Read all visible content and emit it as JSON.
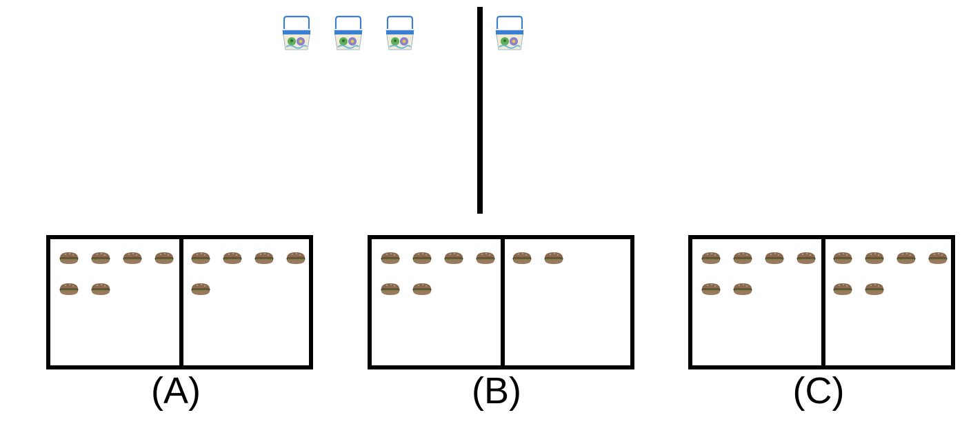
{
  "top": {
    "left_group": {
      "item": "basket",
      "count": 3
    },
    "right_group": {
      "item": "basket",
      "count": 1
    }
  },
  "options": [
    {
      "label": "(A)",
      "left_count": 6,
      "right_count": 5,
      "item": "hamburger"
    },
    {
      "label": "(B)",
      "left_count": 6,
      "right_count": 2,
      "item": "hamburger"
    },
    {
      "label": "(C)",
      "left_count": 6,
      "right_count": 6,
      "item": "hamburger"
    }
  ],
  "icons": {
    "basket": "basket-icon",
    "hamburger": "hamburger-icon"
  },
  "colors": {
    "stroke": "#000000",
    "basket_rim": "#3b7fd0",
    "burger_bun": "#8a6a4e"
  }
}
